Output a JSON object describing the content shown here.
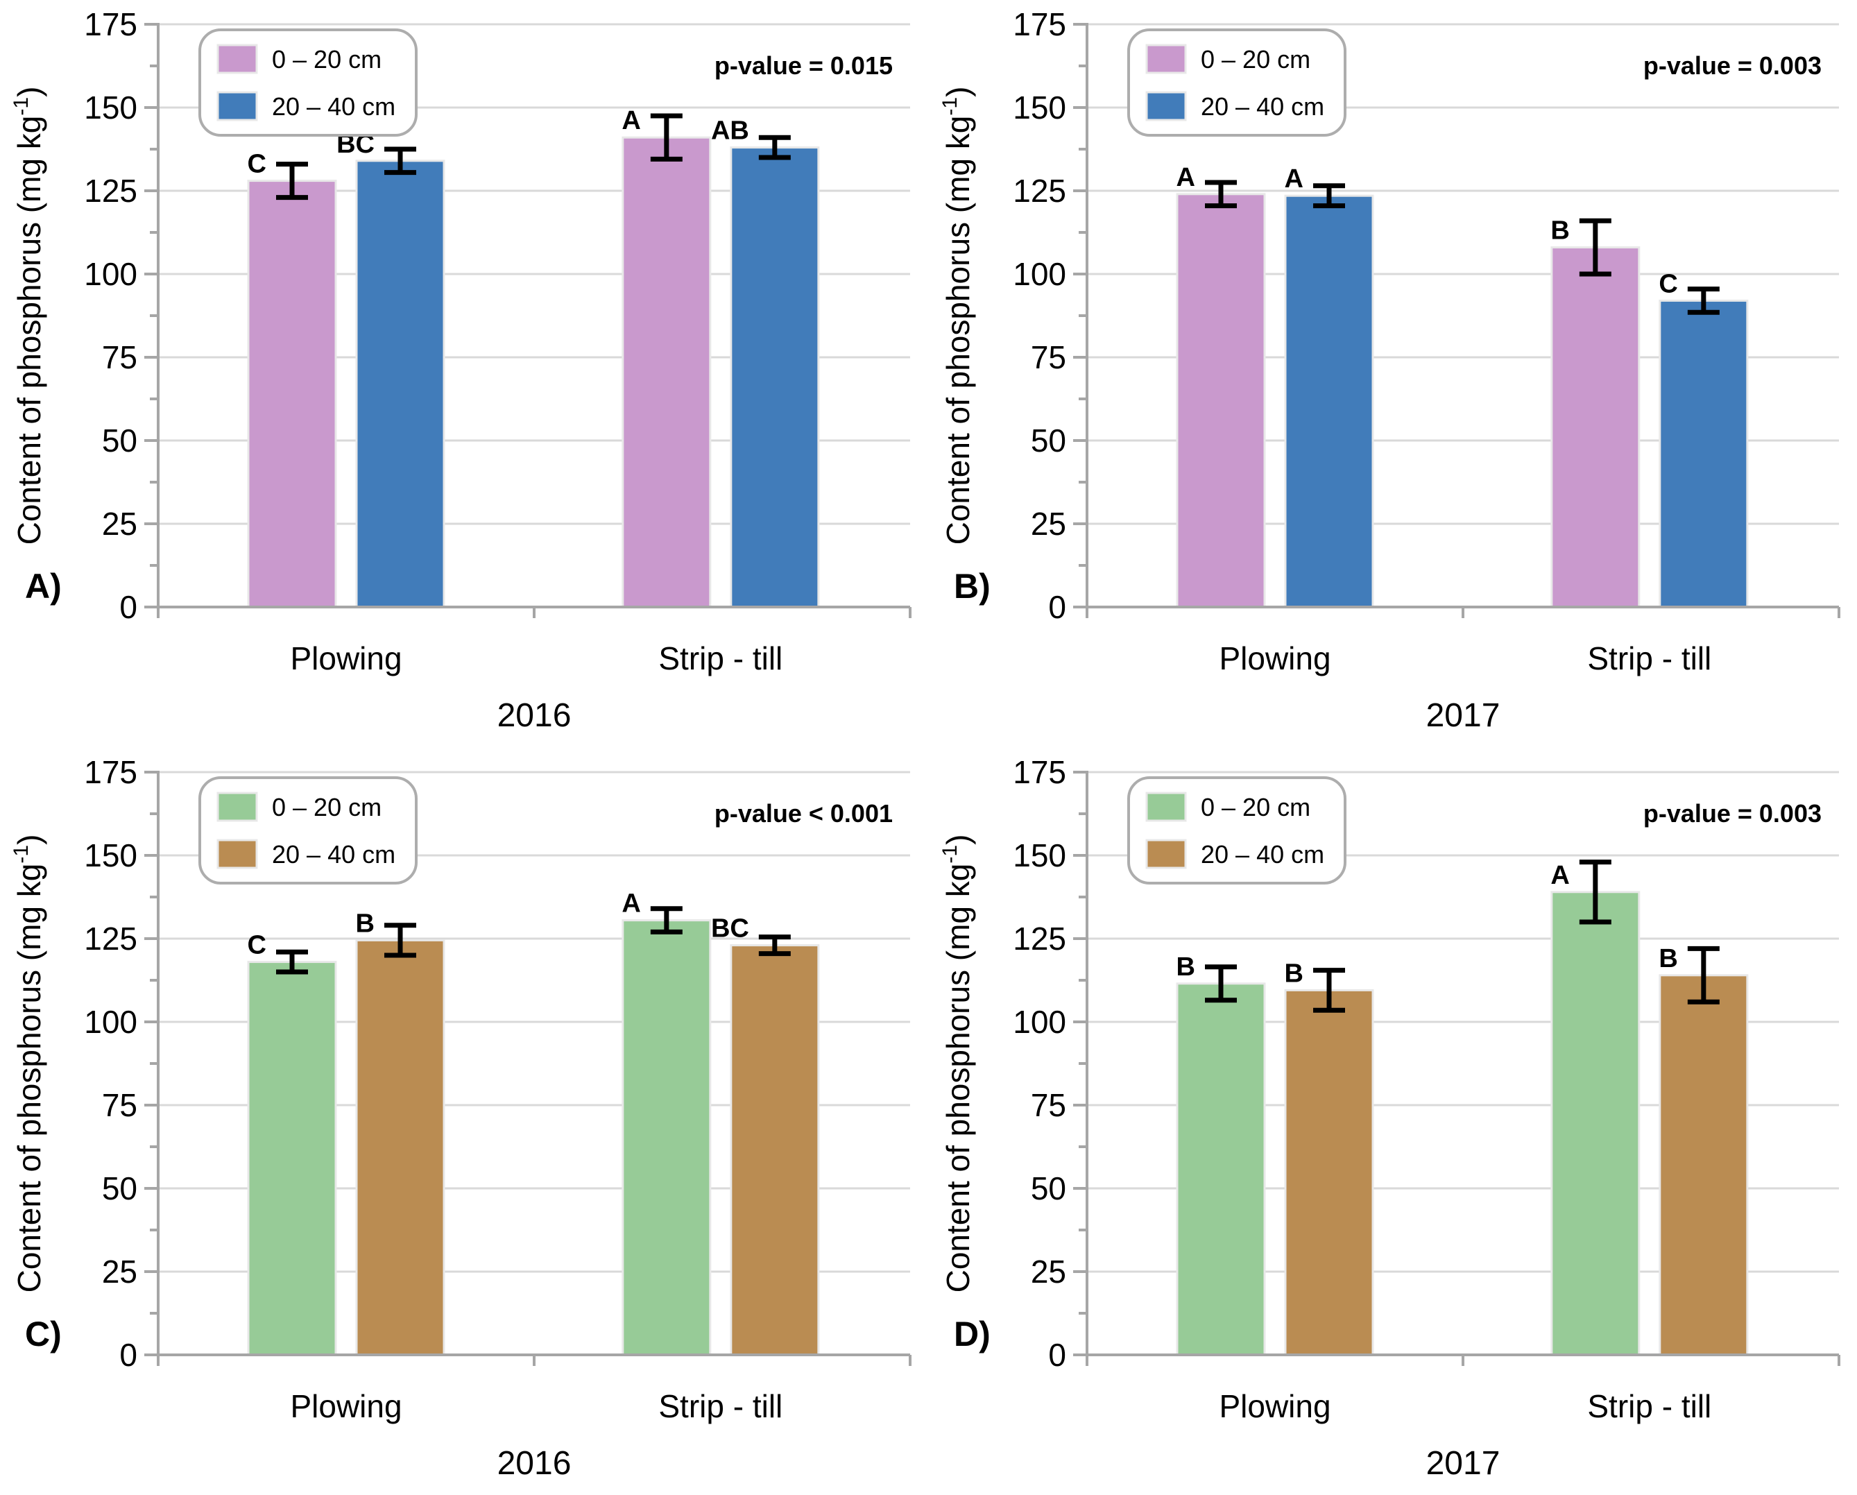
{
  "figure": {
    "ylabel_pre": "Content of phosphorus (mg kg",
    "ylabel_sup": "-1",
    "ylabel_post": ")",
    "ytick_labels": [
      "0",
      "25",
      "50",
      "75",
      "100",
      "125",
      "150",
      "175"
    ],
    "colors": {
      "top_series1": "#c999cd",
      "top_series2": "#417cba",
      "bottom_series1": "#97cb97",
      "bottom_series2": "#ba8c52",
      "grid": "#d9d9d9",
      "axis": "#a6a6a6",
      "legend_border": "#adadad",
      "bar_outline": "#e8e8e8",
      "error_bar": "#000000",
      "text": "#000000"
    }
  },
  "chart_data": [
    {
      "id": "A",
      "type": "bar",
      "panel_label": "A)",
      "year": "2016",
      "p_value": "p-value = 0.015",
      "categories": [
        "Plowing",
        "Strip - till"
      ],
      "legend": [
        "0 – 20 cm",
        "20 – 40 cm"
      ],
      "legend_position": "top-left",
      "grid": true,
      "ylim": [
        0,
        175
      ],
      "ytick_step": 25,
      "series": [
        {
          "name": "0 – 20 cm",
          "color": "#c999cd",
          "values": [
            128,
            141
          ],
          "errors": [
            5,
            6.5
          ],
          "letters": [
            "C",
            "A"
          ]
        },
        {
          "name": "20 – 40 cm",
          "color": "#417cba",
          "values": [
            134,
            138
          ],
          "errors": [
            3.5,
            3
          ],
          "letters": [
            "BC",
            "AB"
          ]
        }
      ]
    },
    {
      "id": "B",
      "type": "bar",
      "panel_label": "B)",
      "year": "2017",
      "p_value": "p-value = 0.003",
      "categories": [
        "Plowing",
        "Strip - till"
      ],
      "legend": [
        "0 – 20 cm",
        "20 – 40 cm"
      ],
      "legend_position": "top-left",
      "grid": true,
      "ylim": [
        0,
        175
      ],
      "ytick_step": 25,
      "series": [
        {
          "name": "0 – 20 cm",
          "color": "#c999cd",
          "values": [
            124,
            108
          ],
          "errors": [
            3.5,
            8
          ],
          "letters": [
            "A",
            "B"
          ]
        },
        {
          "name": "20 – 40 cm",
          "color": "#417cba",
          "values": [
            123.5,
            92
          ],
          "errors": [
            3,
            3.5
          ],
          "letters": [
            "A",
            "C"
          ]
        }
      ]
    },
    {
      "id": "C",
      "type": "bar",
      "panel_label": "C)",
      "year": "2016",
      "p_value": "p-value < 0.001",
      "categories": [
        "Plowing",
        "Strip - till"
      ],
      "legend": [
        "0 – 20 cm",
        "20 – 40 cm"
      ],
      "legend_position": "top-left",
      "grid": true,
      "ylim": [
        0,
        175
      ],
      "ytick_step": 25,
      "series": [
        {
          "name": "0 – 20 cm",
          "color": "#97cb97",
          "values": [
            118,
            130.5
          ],
          "errors": [
            3,
            3.5
          ],
          "letters": [
            "C",
            "A"
          ]
        },
        {
          "name": "20 – 40 cm",
          "color": "#ba8c52",
          "values": [
            124.5,
            123
          ],
          "errors": [
            4.5,
            2.5
          ],
          "letters": [
            "B",
            "BC"
          ]
        }
      ]
    },
    {
      "id": "D",
      "type": "bar",
      "panel_label": "D)",
      "year": "2017",
      "p_value": "p-value = 0.003",
      "categories": [
        "Plowing",
        "Strip - till"
      ],
      "legend": [
        "0 – 20 cm",
        "20 – 40 cm"
      ],
      "legend_position": "top-left",
      "grid": true,
      "ylim": [
        0,
        175
      ],
      "ytick_step": 25,
      "series": [
        {
          "name": "0 – 20 cm",
          "color": "#97cb97",
          "values": [
            111.5,
            139
          ],
          "errors": [
            5,
            9
          ],
          "letters": [
            "B",
            "A"
          ]
        },
        {
          "name": "20 – 40 cm",
          "color": "#ba8c52",
          "values": [
            109.5,
            114
          ],
          "errors": [
            6,
            8
          ],
          "letters": [
            "B",
            "B"
          ]
        }
      ]
    }
  ]
}
